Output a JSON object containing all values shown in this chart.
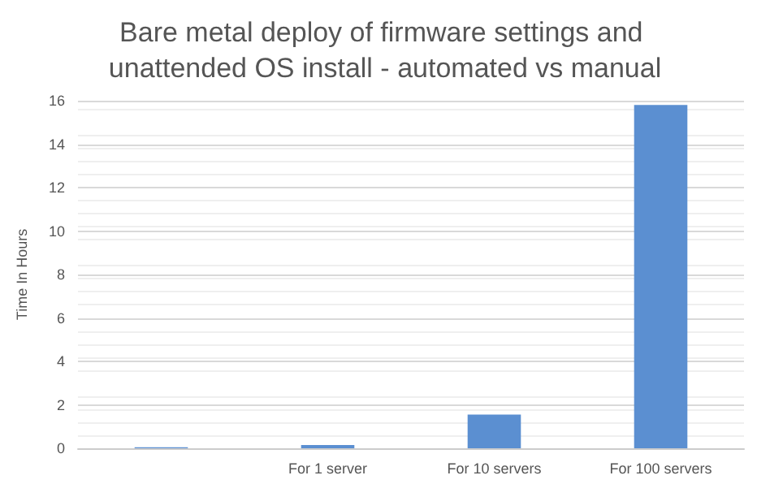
{
  "chart_data": {
    "type": "bar",
    "title": "Bare metal deploy of firmware settings and unattended OS install - automated vs manual",
    "ylabel": "Time In Hours",
    "categories": [
      null,
      "For 1 server",
      "For 10 servers",
      "For 100 servers"
    ],
    "values": [
      0.05,
      0.15,
      1.55,
      15.8
    ],
    "color": "#5b8fd1",
    "ylim": [
      0,
      16
    ],
    "yticks": [
      0,
      2,
      4,
      6,
      8,
      10,
      12,
      14,
      16
    ],
    "grid": true
  }
}
